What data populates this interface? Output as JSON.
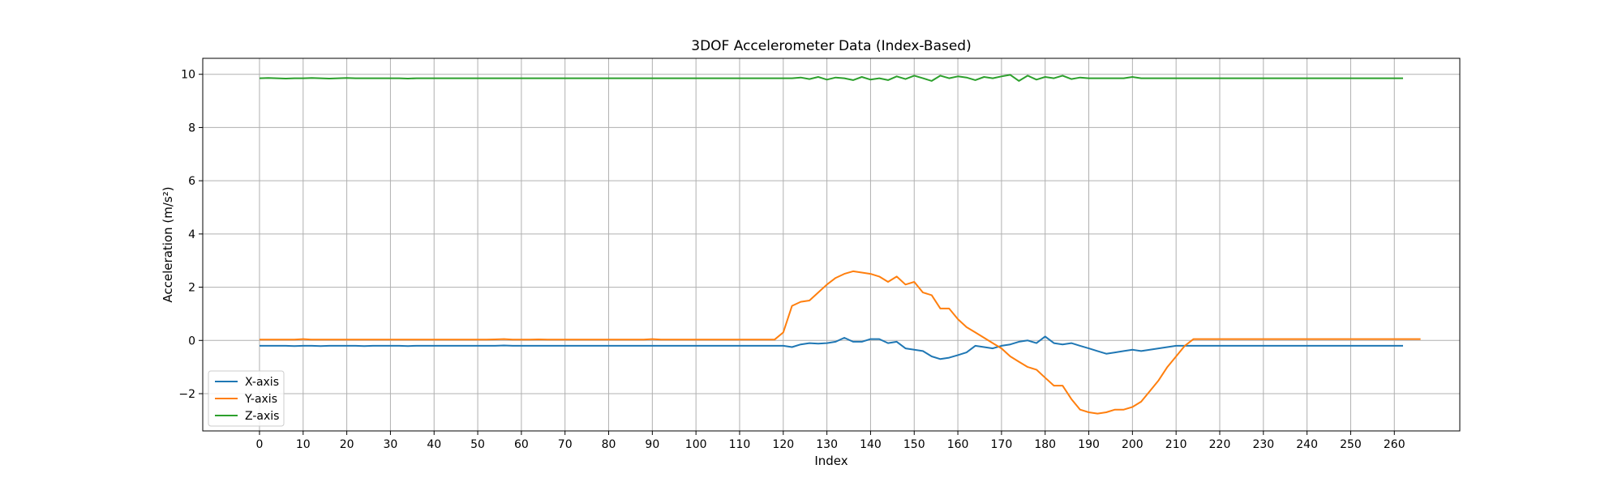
{
  "chart_data": {
    "type": "line",
    "title": "3DOF Accelerometer Data (Index-Based)",
    "xlabel": "Index",
    "ylabel": "Acceleration (m/s²)",
    "xlim": [
      -13,
      275
    ],
    "ylim": [
      -3.4,
      10.6
    ],
    "xticks": [
      0,
      10,
      20,
      30,
      40,
      50,
      60,
      70,
      80,
      90,
      100,
      110,
      120,
      130,
      140,
      150,
      160,
      170,
      180,
      190,
      200,
      210,
      220,
      230,
      240,
      250,
      260
    ],
    "yticks": [
      -2,
      0,
      2,
      4,
      6,
      8,
      10
    ],
    "grid": true,
    "legend_position": "lower-left",
    "x_start": 0,
    "x_step": 2,
    "series": [
      {
        "name": "X-axis",
        "color": "#1f77b4",
        "values": [
          -0.2,
          -0.2,
          -0.2,
          -0.2,
          -0.21,
          -0.2,
          -0.2,
          -0.21,
          -0.2,
          -0.2,
          -0.2,
          -0.2,
          -0.21,
          -0.2,
          -0.2,
          -0.2,
          -0.2,
          -0.21,
          -0.2,
          -0.2,
          -0.2,
          -0.2,
          -0.2,
          -0.2,
          -0.2,
          -0.2,
          -0.2,
          -0.2,
          -0.19,
          -0.2,
          -0.2,
          -0.2,
          -0.2,
          -0.2,
          -0.2,
          -0.2,
          -0.2,
          -0.2,
          -0.2,
          -0.2,
          -0.2,
          -0.2,
          -0.2,
          -0.2,
          -0.2,
          -0.2,
          -0.2,
          -0.2,
          -0.2,
          -0.2,
          -0.2,
          -0.2,
          -0.2,
          -0.2,
          -0.2,
          -0.2,
          -0.2,
          -0.2,
          -0.2,
          -0.2,
          -0.2,
          -0.25,
          -0.15,
          -0.1,
          -0.12,
          -0.1,
          -0.05,
          0.1,
          -0.05,
          -0.05,
          0.05,
          0.05,
          -0.1,
          -0.05,
          -0.3,
          -0.35,
          -0.4,
          -0.6,
          -0.7,
          -0.65,
          -0.55,
          -0.45,
          -0.2,
          -0.25,
          -0.3,
          -0.2,
          -0.15,
          -0.05,
          0,
          -0.1,
          0.15,
          -0.1,
          -0.15,
          -0.1,
          -0.2,
          -0.3,
          -0.4,
          -0.5,
          -0.45,
          -0.4,
          -0.35,
          -0.4,
          -0.35,
          -0.3,
          -0.25,
          -0.2,
          -0.2,
          -0.2,
          -0.2,
          -0.2,
          -0.2,
          -0.2,
          -0.2,
          -0.2,
          -0.2,
          -0.2,
          -0.2,
          -0.2,
          -0.2,
          -0.2,
          -0.2,
          -0.2,
          -0.2,
          -0.2,
          -0.2,
          -0.2,
          -0.2,
          -0.2,
          -0.2,
          -0.2,
          -0.2,
          -0.2
        ]
      },
      {
        "name": "Y-axis",
        "color": "#ff7f0e",
        "values": [
          0.03,
          0.03,
          0.03,
          0.03,
          0.03,
          0.05,
          0.03,
          0.03,
          0.03,
          0.03,
          0.03,
          0.03,
          0.03,
          0.03,
          0.03,
          0.03,
          0.03,
          0.03,
          0.03,
          0.03,
          0.03,
          0.03,
          0.03,
          0.03,
          0.03,
          0.03,
          0.03,
          0.04,
          0.05,
          0.03,
          0.03,
          0.03,
          0.04,
          0.03,
          0.03,
          0.03,
          0.03,
          0.03,
          0.03,
          0.03,
          0.03,
          0.03,
          0.03,
          0.03,
          0.03,
          0.05,
          0.03,
          0.03,
          0.03,
          0.03,
          0.03,
          0.03,
          0.03,
          0.03,
          0.03,
          0.03,
          0.03,
          0.03,
          0.03,
          0.03,
          0.3,
          1.3,
          1.45,
          1.5,
          1.8,
          2.1,
          2.35,
          2.5,
          2.6,
          2.55,
          2.5,
          2.4,
          2.2,
          2.4,
          2.1,
          2.2,
          1.8,
          1.7,
          1.2,
          1.2,
          0.8,
          0.5,
          0.3,
          0.1,
          -0.1,
          -0.3,
          -0.6,
          -0.8,
          -1.0,
          -1.1,
          -1.4,
          -1.7,
          -1.7,
          -2.2,
          -2.6,
          -2.7,
          -2.75,
          -2.7,
          -2.6,
          -2.6,
          -2.5,
          -2.3,
          -1.9,
          -1.5,
          -1.0,
          -0.6,
          -0.2,
          0.05,
          0.05,
          0.05,
          0.05,
          0.05,
          0.05,
          0.05,
          0.05,
          0.05,
          0.05,
          0.05,
          0.05,
          0.05,
          0.05,
          0.05,
          0.05,
          0.05,
          0.05,
          0.05,
          0.05,
          0.05,
          0.05,
          0.05,
          0.05,
          0.05,
          0.05,
          0.05
        ]
      },
      {
        "name": "Z-axis",
        "color": "#2ca02c",
        "values": [
          9.85,
          9.86,
          9.85,
          9.84,
          9.85,
          9.85,
          9.86,
          9.85,
          9.84,
          9.85,
          9.86,
          9.85,
          9.85,
          9.85,
          9.85,
          9.85,
          9.85,
          9.84,
          9.85,
          9.85,
          9.85,
          9.85,
          9.85,
          9.85,
          9.85,
          9.85,
          9.85,
          9.85,
          9.85,
          9.85,
          9.85,
          9.85,
          9.85,
          9.85,
          9.85,
          9.85,
          9.85,
          9.85,
          9.85,
          9.85,
          9.85,
          9.85,
          9.85,
          9.85,
          9.85,
          9.85,
          9.85,
          9.85,
          9.85,
          9.85,
          9.85,
          9.85,
          9.85,
          9.85,
          9.85,
          9.85,
          9.85,
          9.85,
          9.85,
          9.85,
          9.85,
          9.85,
          9.88,
          9.82,
          9.9,
          9.8,
          9.88,
          9.85,
          9.78,
          9.9,
          9.8,
          9.85,
          9.78,
          9.92,
          9.82,
          9.95,
          9.85,
          9.75,
          9.95,
          9.85,
          9.92,
          9.88,
          9.78,
          9.9,
          9.85,
          9.92,
          9.98,
          9.75,
          9.95,
          9.8,
          9.9,
          9.85,
          9.95,
          9.82,
          9.88,
          9.85,
          9.85,
          9.85,
          9.85,
          9.85,
          9.9,
          9.85,
          9.85,
          9.85,
          9.85,
          9.85,
          9.85,
          9.85,
          9.85,
          9.85,
          9.85,
          9.85,
          9.85,
          9.85,
          9.85,
          9.85,
          9.85,
          9.85,
          9.85,
          9.85,
          9.85,
          9.85,
          9.85,
          9.85,
          9.85,
          9.85,
          9.85,
          9.85,
          9.85,
          9.85,
          9.85,
          9.85
        ]
      }
    ]
  }
}
